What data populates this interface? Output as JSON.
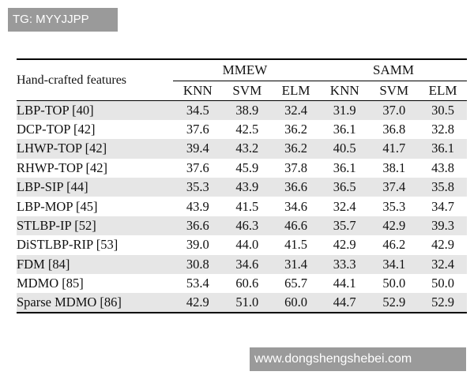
{
  "watermarks": {
    "top": "TG: MYYJJPP",
    "bottom": "www.dongshengshebei.com"
  },
  "table": {
    "feature_header": "Hand-crafted features",
    "groups": [
      "MMEW",
      "SAMM"
    ],
    "subheaders": [
      "KNN",
      "SVM",
      "ELM",
      "KNN",
      "SVM",
      "ELM"
    ],
    "rows": [
      {
        "name": "LBP-TOP [40]",
        "values": [
          "34.5",
          "38.9",
          "32.4",
          "31.9",
          "37.0",
          "30.5"
        ]
      },
      {
        "name": "DCP-TOP [42]",
        "values": [
          "37.6",
          "42.5",
          "36.2",
          "36.1",
          "36.8",
          "32.8"
        ]
      },
      {
        "name": "LHWP-TOP [42]",
        "values": [
          "39.4",
          "43.2",
          "36.2",
          "40.5",
          "41.7",
          "36.1"
        ]
      },
      {
        "name": "RHWP-TOP [42]",
        "values": [
          "37.6",
          "45.9",
          "37.8",
          "36.1",
          "38.1",
          "43.8"
        ]
      },
      {
        "name": "LBP-SIP [44]",
        "values": [
          "35.3",
          "43.9",
          "36.6",
          "36.5",
          "37.4",
          "35.8"
        ]
      },
      {
        "name": "LBP-MOP [45]",
        "values": [
          "43.9",
          "41.5",
          "34.6",
          "32.4",
          "35.3",
          "34.7"
        ]
      },
      {
        "name": "STLBP-IP [52]",
        "values": [
          "36.6",
          "46.3",
          "46.6",
          "35.7",
          "42.9",
          "39.3"
        ]
      },
      {
        "name": "DiSTLBP-RIP [53]",
        "values": [
          "39.0",
          "44.0",
          "41.5",
          "42.9",
          "46.2",
          "42.9"
        ]
      },
      {
        "name": "FDM [84]",
        "values": [
          "30.8",
          "34.6",
          "31.4",
          "33.3",
          "34.1",
          "32.4"
        ]
      },
      {
        "name": "MDMO [85]",
        "values": [
          "53.4",
          "60.6",
          "65.7",
          "44.1",
          "50.0",
          "50.0"
        ]
      },
      {
        "name": "Sparse MDMO [86]",
        "values": [
          "42.9",
          "51.0",
          "60.0",
          "44.7",
          "52.9",
          "52.9"
        ]
      }
    ]
  }
}
